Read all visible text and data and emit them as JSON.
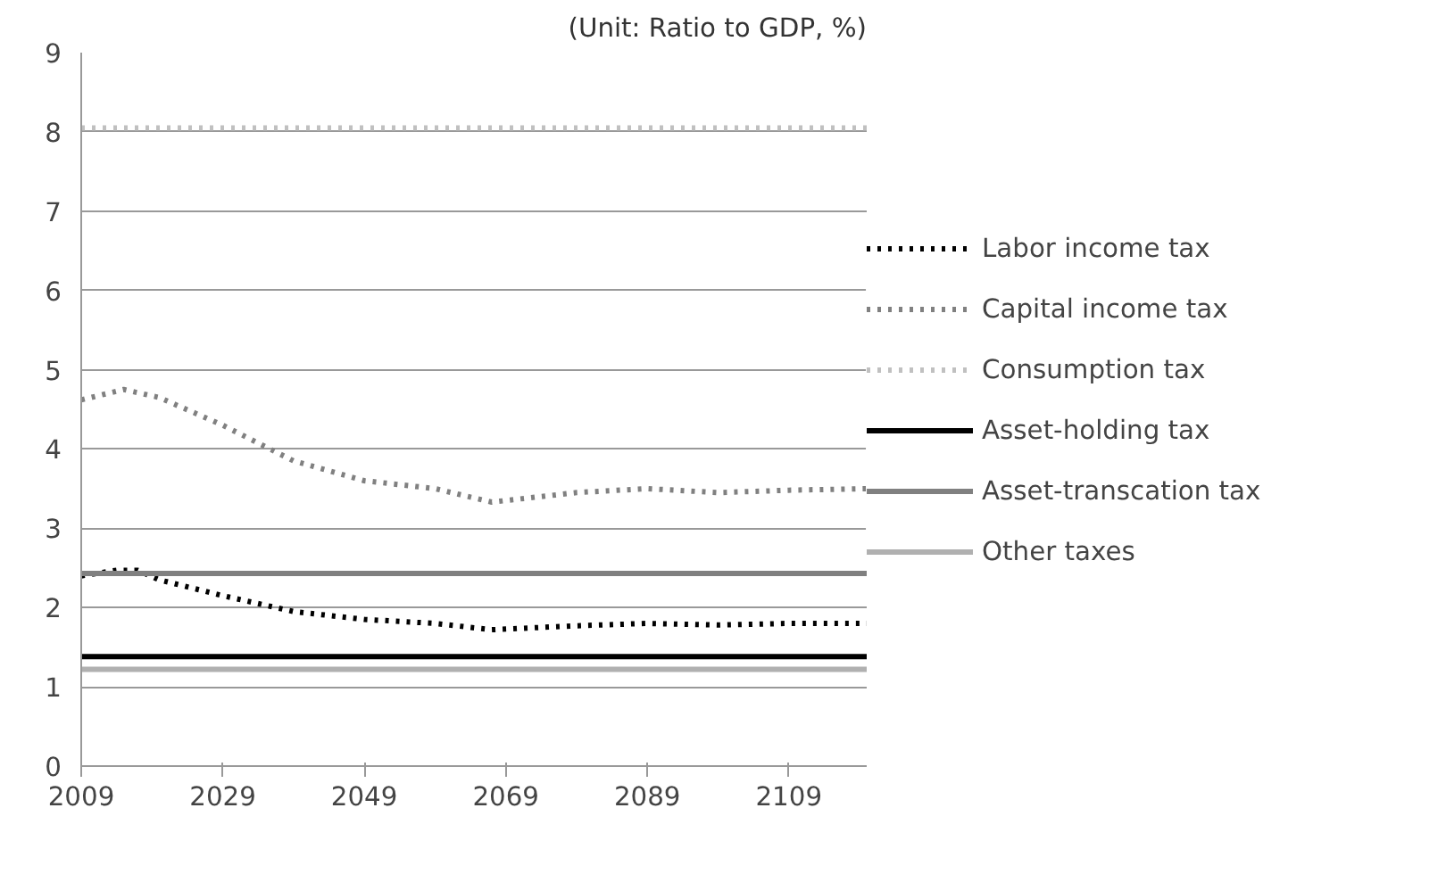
{
  "chart_data": {
    "type": "line",
    "annotations": [
      "(Unit: Ratio to GDP, %)"
    ],
    "xlim": [
      2009,
      2120
    ],
    "xticks": [
      2009,
      2029,
      2049,
      2069,
      2089,
      2109
    ],
    "ylim": [
      0,
      9
    ],
    "yticks": [
      0,
      1,
      2,
      3,
      4,
      5,
      6,
      7,
      8,
      9
    ],
    "grid": "y",
    "legend": "right",
    "series": [
      {
        "name": "Labor income tax",
        "color": "#000000",
        "line_style": "dotted",
        "x": [
          2009,
          2014,
          2017,
          2020,
          2029,
          2039,
          2049,
          2059,
          2067,
          2079,
          2089,
          2099,
          2109,
          2120
        ],
        "values": [
          2.4,
          2.47,
          2.47,
          2.35,
          2.15,
          1.95,
          1.85,
          1.8,
          1.72,
          1.77,
          1.8,
          1.78,
          1.8,
          1.8
        ]
      },
      {
        "name": "Capital income tax",
        "color": "#808080",
        "line_style": "dotted",
        "x": [
          2009,
          2015,
          2020,
          2029,
          2039,
          2049,
          2059,
          2067,
          2079,
          2089,
          2099,
          2109,
          2120
        ],
        "values": [
          4.62,
          4.75,
          4.65,
          4.3,
          3.85,
          3.6,
          3.5,
          3.33,
          3.45,
          3.5,
          3.45,
          3.48,
          3.5
        ]
      },
      {
        "name": "Consumption tax",
        "color": "#c0c0c0",
        "line_style": "dotted",
        "x": [
          2009,
          2120
        ],
        "values": [
          8.05,
          8.05
        ]
      },
      {
        "name": "Asset-holding tax",
        "color": "#000000",
        "line_style": "solid",
        "x": [
          2009,
          2120
        ],
        "values": [
          1.38,
          1.38
        ]
      },
      {
        "name": "Asset-transcation tax",
        "color": "#808080",
        "line_style": "solid",
        "x": [
          2009,
          2120
        ],
        "values": [
          2.43,
          2.43
        ]
      },
      {
        "name": "Other taxes",
        "color": "#b0b0b0",
        "line_style": "solid",
        "x": [
          2009,
          2120
        ],
        "values": [
          1.22,
          1.22
        ]
      }
    ]
  }
}
